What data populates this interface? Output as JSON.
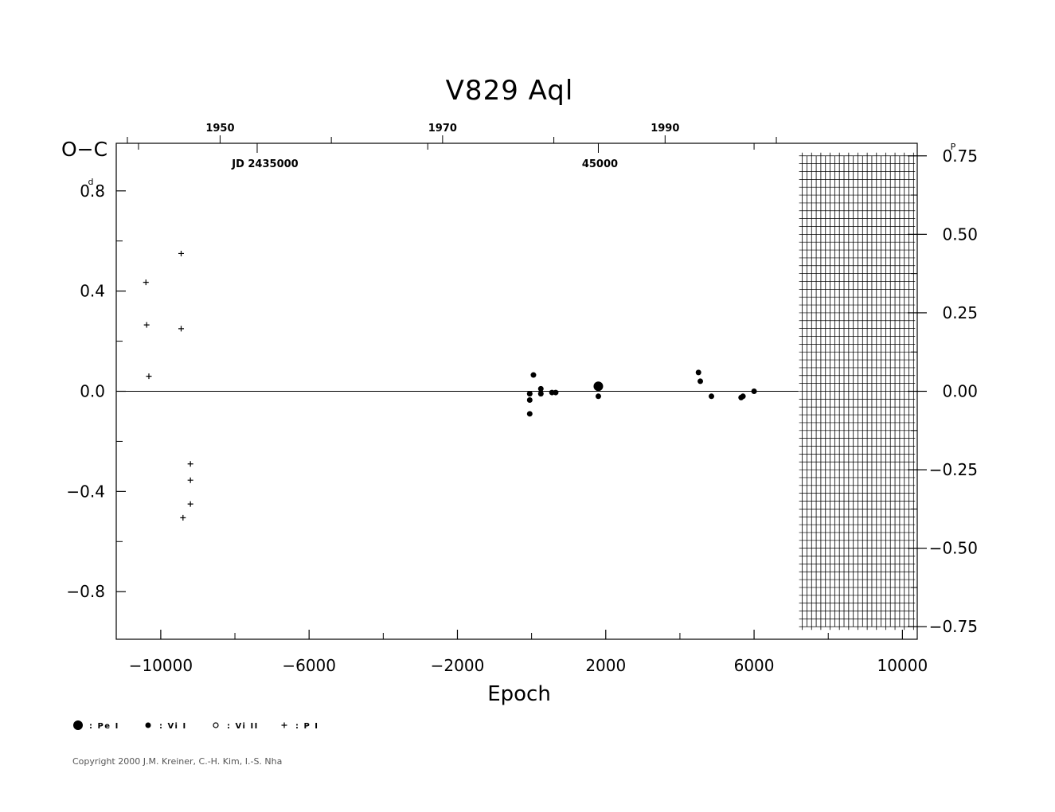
{
  "chart_data": {
    "type": "scatter",
    "title": "V829  Aql",
    "xlabel": "Epoch",
    "ylabel": "O−C",
    "y_unit_left": "d",
    "y_unit_right": "P",
    "xlim": [
      -11200,
      10400
    ],
    "ylim": [
      -0.99,
      0.99
    ],
    "ylim_right": [
      -0.79,
      0.79
    ],
    "x_ticks": [
      {
        "v": -10000,
        "label": "−10000"
      },
      {
        "v": -6000,
        "label": "−6000"
      },
      {
        "v": -2000,
        "label": "−2000"
      },
      {
        "v": 2000,
        "label": "2000"
      },
      {
        "v": 6000,
        "label": "6000"
      },
      {
        "v": 10000,
        "label": "10000"
      }
    ],
    "x_minor_ticks": [
      -8000,
      -4000,
      0,
      4000,
      8000
    ],
    "y_ticks_left": [
      {
        "v": 0.8,
        "label": "0.8"
      },
      {
        "v": 0.4,
        "label": "0.4"
      },
      {
        "v": 0.0,
        "label": "0.0"
      },
      {
        "v": -0.4,
        "label": "−0.4"
      },
      {
        "v": -0.8,
        "label": "−0.8"
      }
    ],
    "y_minor_left": [
      0.6,
      0.2,
      -0.2,
      -0.6
    ],
    "y_ticks_right": [
      {
        "v": 0.75,
        "label": "0.75"
      },
      {
        "v": 0.5,
        "label": "0.50"
      },
      {
        "v": 0.25,
        "label": "0.25"
      },
      {
        "v": 0.0,
        "label": "0.00"
      },
      {
        "v": -0.25,
        "label": "−0.25"
      },
      {
        "v": -0.5,
        "label": "−0.50"
      },
      {
        "v": -0.75,
        "label": "−0.75"
      }
    ],
    "y_minor_right": [
      0.625,
      0.375,
      0.125,
      -0.125,
      -0.375,
      -0.625
    ],
    "top_year_ticks": [
      {
        "v": -8400,
        "label": "1950"
      },
      {
        "v": -2400,
        "label": "1970"
      },
      {
        "v": 3600,
        "label": "1990"
      }
    ],
    "top_year_minor": [
      -10900,
      -5400,
      600,
      6600
    ],
    "top_jd_ticks": [
      {
        "v": -7400,
        "label": "JD  2435000"
      },
      {
        "v": 1800,
        "label": "45000"
      }
    ],
    "top_jd_minor": [
      -10600,
      -2800,
      6000
    ],
    "zero_line_range": [
      -11200,
      7200
    ],
    "hatch_region": {
      "x": [
        7300,
        10300
      ],
      "y": [
        -0.75,
        0.75
      ]
    },
    "series": [
      {
        "name": "Pe I",
        "marker": "large-dot",
        "points": [
          [
            1800,
            0.02
          ]
        ]
      },
      {
        "name": "Vi I",
        "marker": "dot",
        "points": [
          [
            -50,
            -0.01
          ],
          [
            -50,
            -0.035
          ],
          [
            -50,
            -0.09
          ],
          [
            50,
            0.065
          ],
          [
            250,
            0.01
          ],
          [
            250,
            -0.01
          ],
          [
            550,
            -0.005
          ],
          [
            650,
            -0.005
          ],
          [
            1800,
            -0.02
          ],
          [
            4500,
            0.075
          ],
          [
            4550,
            0.04
          ],
          [
            4850,
            -0.02
          ],
          [
            5650,
            -0.025
          ],
          [
            5700,
            -0.02
          ],
          [
            6000,
            0.0
          ]
        ]
      },
      {
        "name": "Vi II",
        "marker": "circle",
        "points": []
      },
      {
        "name": "P I",
        "marker": "plus",
        "points": [
          [
            -10400,
            0.435
          ],
          [
            -10380,
            0.265
          ],
          [
            -10320,
            0.06
          ],
          [
            -9450,
            0.55
          ],
          [
            -9450,
            0.25
          ],
          [
            -9400,
            -0.505
          ],
          [
            -9200,
            -0.29
          ],
          [
            -9200,
            -0.355
          ],
          [
            -9200,
            -0.45
          ]
        ]
      }
    ]
  },
  "legend": [
    {
      "marker": "large-dot",
      "label": ": Pe I"
    },
    {
      "marker": "dot",
      "label": ": Vi I"
    },
    {
      "marker": "circle",
      "label": ": Vi II"
    },
    {
      "marker": "plus",
      "label": ": P I"
    }
  ],
  "copyright": "Copyright 2000 J.M. Kreiner, C.-H. Kim, I.-S. Nha"
}
